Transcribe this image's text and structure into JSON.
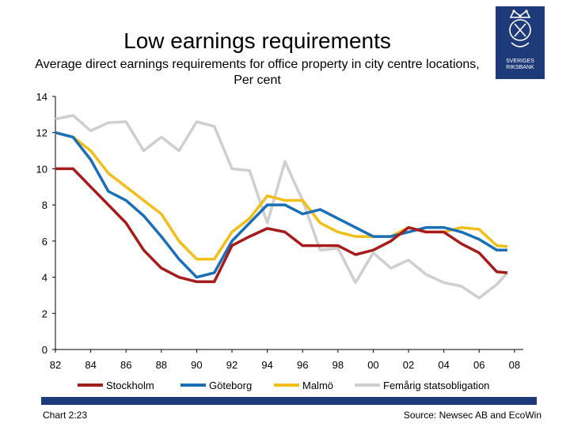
{
  "title": "Low earnings requirements",
  "subtitle": "Average direct earnings requirements for office property in city centre locations, Per cent",
  "logo": {
    "line1": "SVERIGES",
    "line2": "RIKSBANK"
  },
  "footer": {
    "chart_id": "Chart 2:23",
    "source": "Source: Newsec AB and EcoWin"
  },
  "colors": {
    "accent": "#1f3a78"
  },
  "chart_data": {
    "type": "line",
    "title": "Low earnings requirements",
    "xlabel": "",
    "ylabel": "",
    "xlim": [
      1982,
      2008.5
    ],
    "ylim": [
      0,
      14
    ],
    "x_ticks": [
      1982,
      1984,
      1986,
      1988,
      1990,
      1992,
      1994,
      1996,
      1998,
      2000,
      2002,
      2004,
      2006,
      2008
    ],
    "x_tick_labels": [
      "82",
      "84",
      "86",
      "88",
      "90",
      "92",
      "94",
      "96",
      "98",
      "00",
      "02",
      "04",
      "06",
      "08"
    ],
    "y_ticks": [
      0,
      2,
      4,
      6,
      8,
      10,
      12,
      14
    ],
    "y_tick_labels": [
      "0",
      "2",
      "4",
      "6",
      "8",
      "10",
      "12",
      "14"
    ],
    "grid": false,
    "legend_position": "bottom",
    "series": [
      {
        "name": "Stockholm",
        "color": "#a51c1c",
        "points": [
          [
            1982,
            10
          ],
          [
            1983,
            10
          ],
          [
            1984,
            9
          ],
          [
            1985,
            8
          ],
          [
            1986,
            7
          ],
          [
            1987,
            5.5
          ],
          [
            1988,
            4.5
          ],
          [
            1989,
            4
          ],
          [
            1990,
            3.75
          ],
          [
            1991,
            3.75
          ],
          [
            1992,
            5.75
          ],
          [
            1993,
            6.25
          ],
          [
            1994,
            6.7
          ],
          [
            1995,
            6.5
          ],
          [
            1996,
            5.75
          ],
          [
            1997,
            5.75
          ],
          [
            1998,
            5.75
          ],
          [
            1999,
            5.25
          ],
          [
            2000,
            5.5
          ],
          [
            2001,
            6
          ],
          [
            2002,
            6.75
          ],
          [
            2003,
            6.5
          ],
          [
            2004,
            6.5
          ],
          [
            2005,
            5.85
          ],
          [
            2006,
            5.35
          ],
          [
            2007,
            4.3
          ],
          [
            2007.6,
            4.25
          ]
        ]
      },
      {
        "name": "Göteborg",
        "color": "#1b6fb7",
        "points": [
          [
            1982,
            12
          ],
          [
            1983,
            11.75
          ],
          [
            1984,
            10.5
          ],
          [
            1985,
            8.75
          ],
          [
            1986,
            8.25
          ],
          [
            1987,
            7.4
          ],
          [
            1988,
            6.25
          ],
          [
            1989,
            5
          ],
          [
            1990,
            4
          ],
          [
            1991,
            4.25
          ],
          [
            1992,
            6
          ],
          [
            1993,
            7
          ],
          [
            1994,
            8
          ],
          [
            1995,
            8
          ],
          [
            1996,
            7.5
          ],
          [
            1997,
            7.75
          ],
          [
            1998,
            7.25
          ],
          [
            1999,
            6.75
          ],
          [
            2000,
            6.25
          ],
          [
            2001,
            6.25
          ],
          [
            2002,
            6.5
          ],
          [
            2003,
            6.75
          ],
          [
            2004,
            6.75
          ],
          [
            2005,
            6.5
          ],
          [
            2006,
            6.1
          ],
          [
            2007,
            5.5
          ],
          [
            2007.6,
            5.5
          ]
        ]
      },
      {
        "name": "Malmö",
        "color": "#f1be1b",
        "points": [
          [
            1982,
            12
          ],
          [
            1983,
            11.75
          ],
          [
            1984,
            11
          ],
          [
            1985,
            9.75
          ],
          [
            1986,
            9
          ],
          [
            1987,
            8.25
          ],
          [
            1988,
            7.5
          ],
          [
            1989,
            6
          ],
          [
            1990,
            5
          ],
          [
            1991,
            5
          ],
          [
            1992,
            6.5
          ],
          [
            1993,
            7.25
          ],
          [
            1994,
            8.5
          ],
          [
            1995,
            8.25
          ],
          [
            1996,
            8.25
          ],
          [
            1997,
            7
          ],
          [
            1998,
            6.5
          ],
          [
            1999,
            6.25
          ],
          [
            2000,
            6.25
          ],
          [
            2001,
            6.25
          ],
          [
            2002,
            6.75
          ],
          [
            2003,
            6.5
          ],
          [
            2004,
            6.5
          ],
          [
            2005,
            6.75
          ],
          [
            2006,
            6.65
          ],
          [
            2007,
            5.75
          ],
          [
            2007.6,
            5.7
          ]
        ]
      },
      {
        "name": "Femårig statsobligation",
        "color": "#cfcfcf",
        "points": [
          [
            1982,
            12.75
          ],
          [
            1983,
            12.95
          ],
          [
            1984,
            12.1
          ],
          [
            1985,
            12.55
          ],
          [
            1986,
            12.6
          ],
          [
            1987,
            11
          ],
          [
            1988,
            11.75
          ],
          [
            1989,
            11
          ],
          [
            1990,
            12.6
          ],
          [
            1991,
            12.35
          ],
          [
            1992,
            10
          ],
          [
            1993,
            9.9
          ],
          [
            1994,
            7
          ],
          [
            1995,
            10.4
          ],
          [
            1996,
            8.25
          ],
          [
            1997,
            5.5
          ],
          [
            1998,
            5.6
          ],
          [
            1999,
            3.7
          ],
          [
            2000,
            5.35
          ],
          [
            2001,
            4.5
          ],
          [
            2002,
            4.95
          ],
          [
            2003,
            4.15
          ],
          [
            2004,
            3.7
          ],
          [
            2005,
            3.5
          ],
          [
            2006,
            2.85
          ],
          [
            2007,
            3.6
          ],
          [
            2007.6,
            4.25
          ]
        ]
      }
    ]
  }
}
